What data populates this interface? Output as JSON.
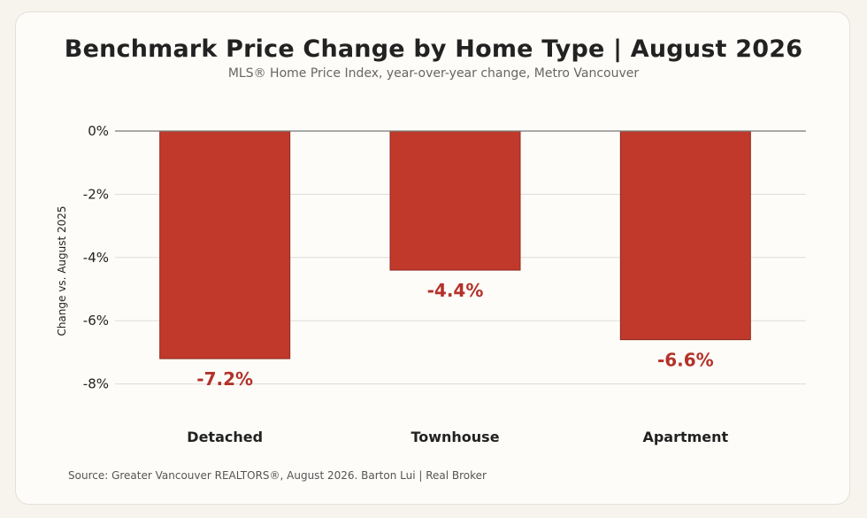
{
  "chart_data": {
    "type": "bar",
    "title": "Benchmark Price Change by Home Type | August 2026",
    "subtitle": "MLS® Home Price Index, year-over-year change, Metro Vancouver",
    "ylabel": "Change vs. August 2025",
    "xlabel": "",
    "categories": [
      "Detached",
      "Townhouse",
      "Apartment"
    ],
    "values": [
      -7.2,
      -4.4,
      -6.6
    ],
    "data_labels": [
      "-7.2%",
      "-4.4%",
      "-6.6%"
    ],
    "yticks": [
      0,
      -2,
      -4,
      -6,
      -8
    ],
    "ytick_labels": [
      "0%",
      "-2%",
      "-4%",
      "-6%",
      "-8%"
    ],
    "ylim": [
      -8.8,
      0
    ],
    "grid": true,
    "colors": {
      "bar": "#c0392b",
      "bar_edge": "#8e2a20",
      "data_label": "#b3322a",
      "grid": "#dddddd",
      "zero_line": "#777777"
    }
  },
  "source": "Source: Greater Vancouver REALTORS®, August 2026. Barton Lui | Real Broker"
}
